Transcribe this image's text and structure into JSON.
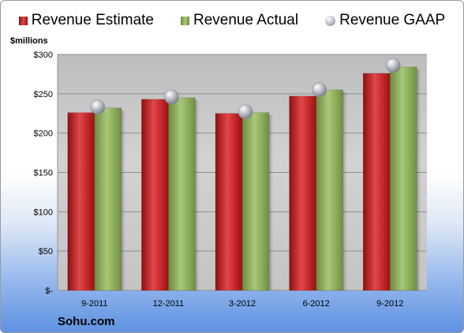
{
  "chart_data": {
    "type": "bar",
    "title": "",
    "ylabel": "$millions",
    "xlabel": "",
    "categories": [
      "9-2011",
      "12-2011",
      "3-2012",
      "6-2012",
      "9-2012"
    ],
    "series": [
      {
        "name": "Revenue Estimate",
        "type": "bar",
        "color": "#c41e1f",
        "values": [
          226,
          243,
          225,
          247,
          276
        ]
      },
      {
        "name": "Revenue Actual",
        "type": "bar",
        "color": "#8aab5a",
        "values": [
          232,
          245,
          226,
          255,
          284
        ]
      },
      {
        "name": "Revenue GAAP",
        "type": "marker",
        "color": "#a8acb4",
        "values": [
          233,
          246,
          227,
          255,
          286
        ]
      }
    ],
    "ylim": [
      0,
      300
    ],
    "yticks": [
      0,
      50,
      100,
      150,
      200,
      250,
      300
    ],
    "ytick_labels": [
      "$-",
      "$50",
      "$100",
      "$150",
      "$200",
      "$250",
      "$300"
    ],
    "grid": true,
    "legend_position": "top"
  },
  "footer": {
    "company": "Sohu.com"
  }
}
